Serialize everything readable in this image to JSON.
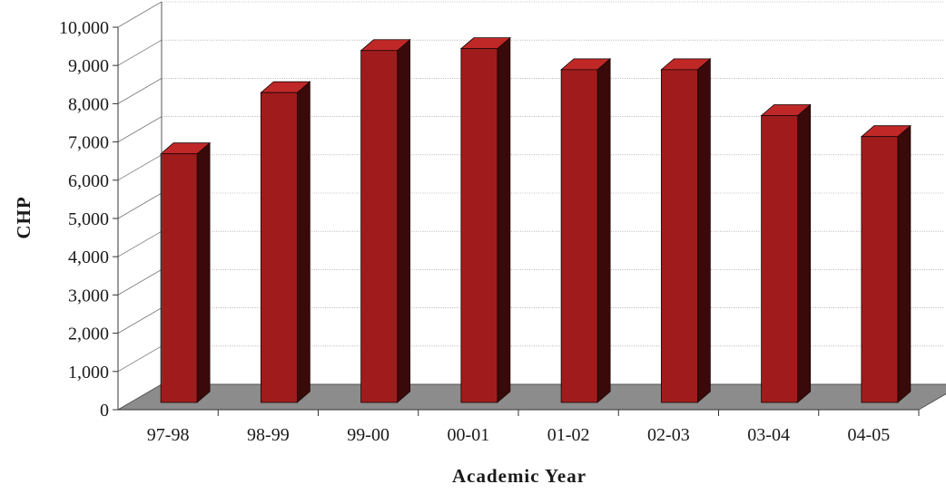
{
  "chart_data": {
    "type": "bar",
    "title": "",
    "xlabel": "Academic Year",
    "ylabel": "CHP",
    "categories": [
      "97-98",
      "98-99",
      "99-00",
      "00-01",
      "01-02",
      "02-03",
      "03-04",
      "04-05"
    ],
    "values": [
      6500,
      8100,
      9200,
      9250,
      8700,
      8700,
      7500,
      6950
    ],
    "ylim": [
      0,
      10000
    ],
    "y_ticks": [
      "0",
      "1,000",
      "2,000",
      "3,000",
      "4,000",
      "5,000",
      "6,000",
      "7,000",
      "8,000",
      "9,000",
      "10,000"
    ],
    "grid": true,
    "style": "3d-column",
    "colors": {
      "bar_front": "#a01c1c",
      "bar_side": "#3a0a0a",
      "bar_top": "#c02828",
      "floor": "#8c8c8c"
    }
  }
}
